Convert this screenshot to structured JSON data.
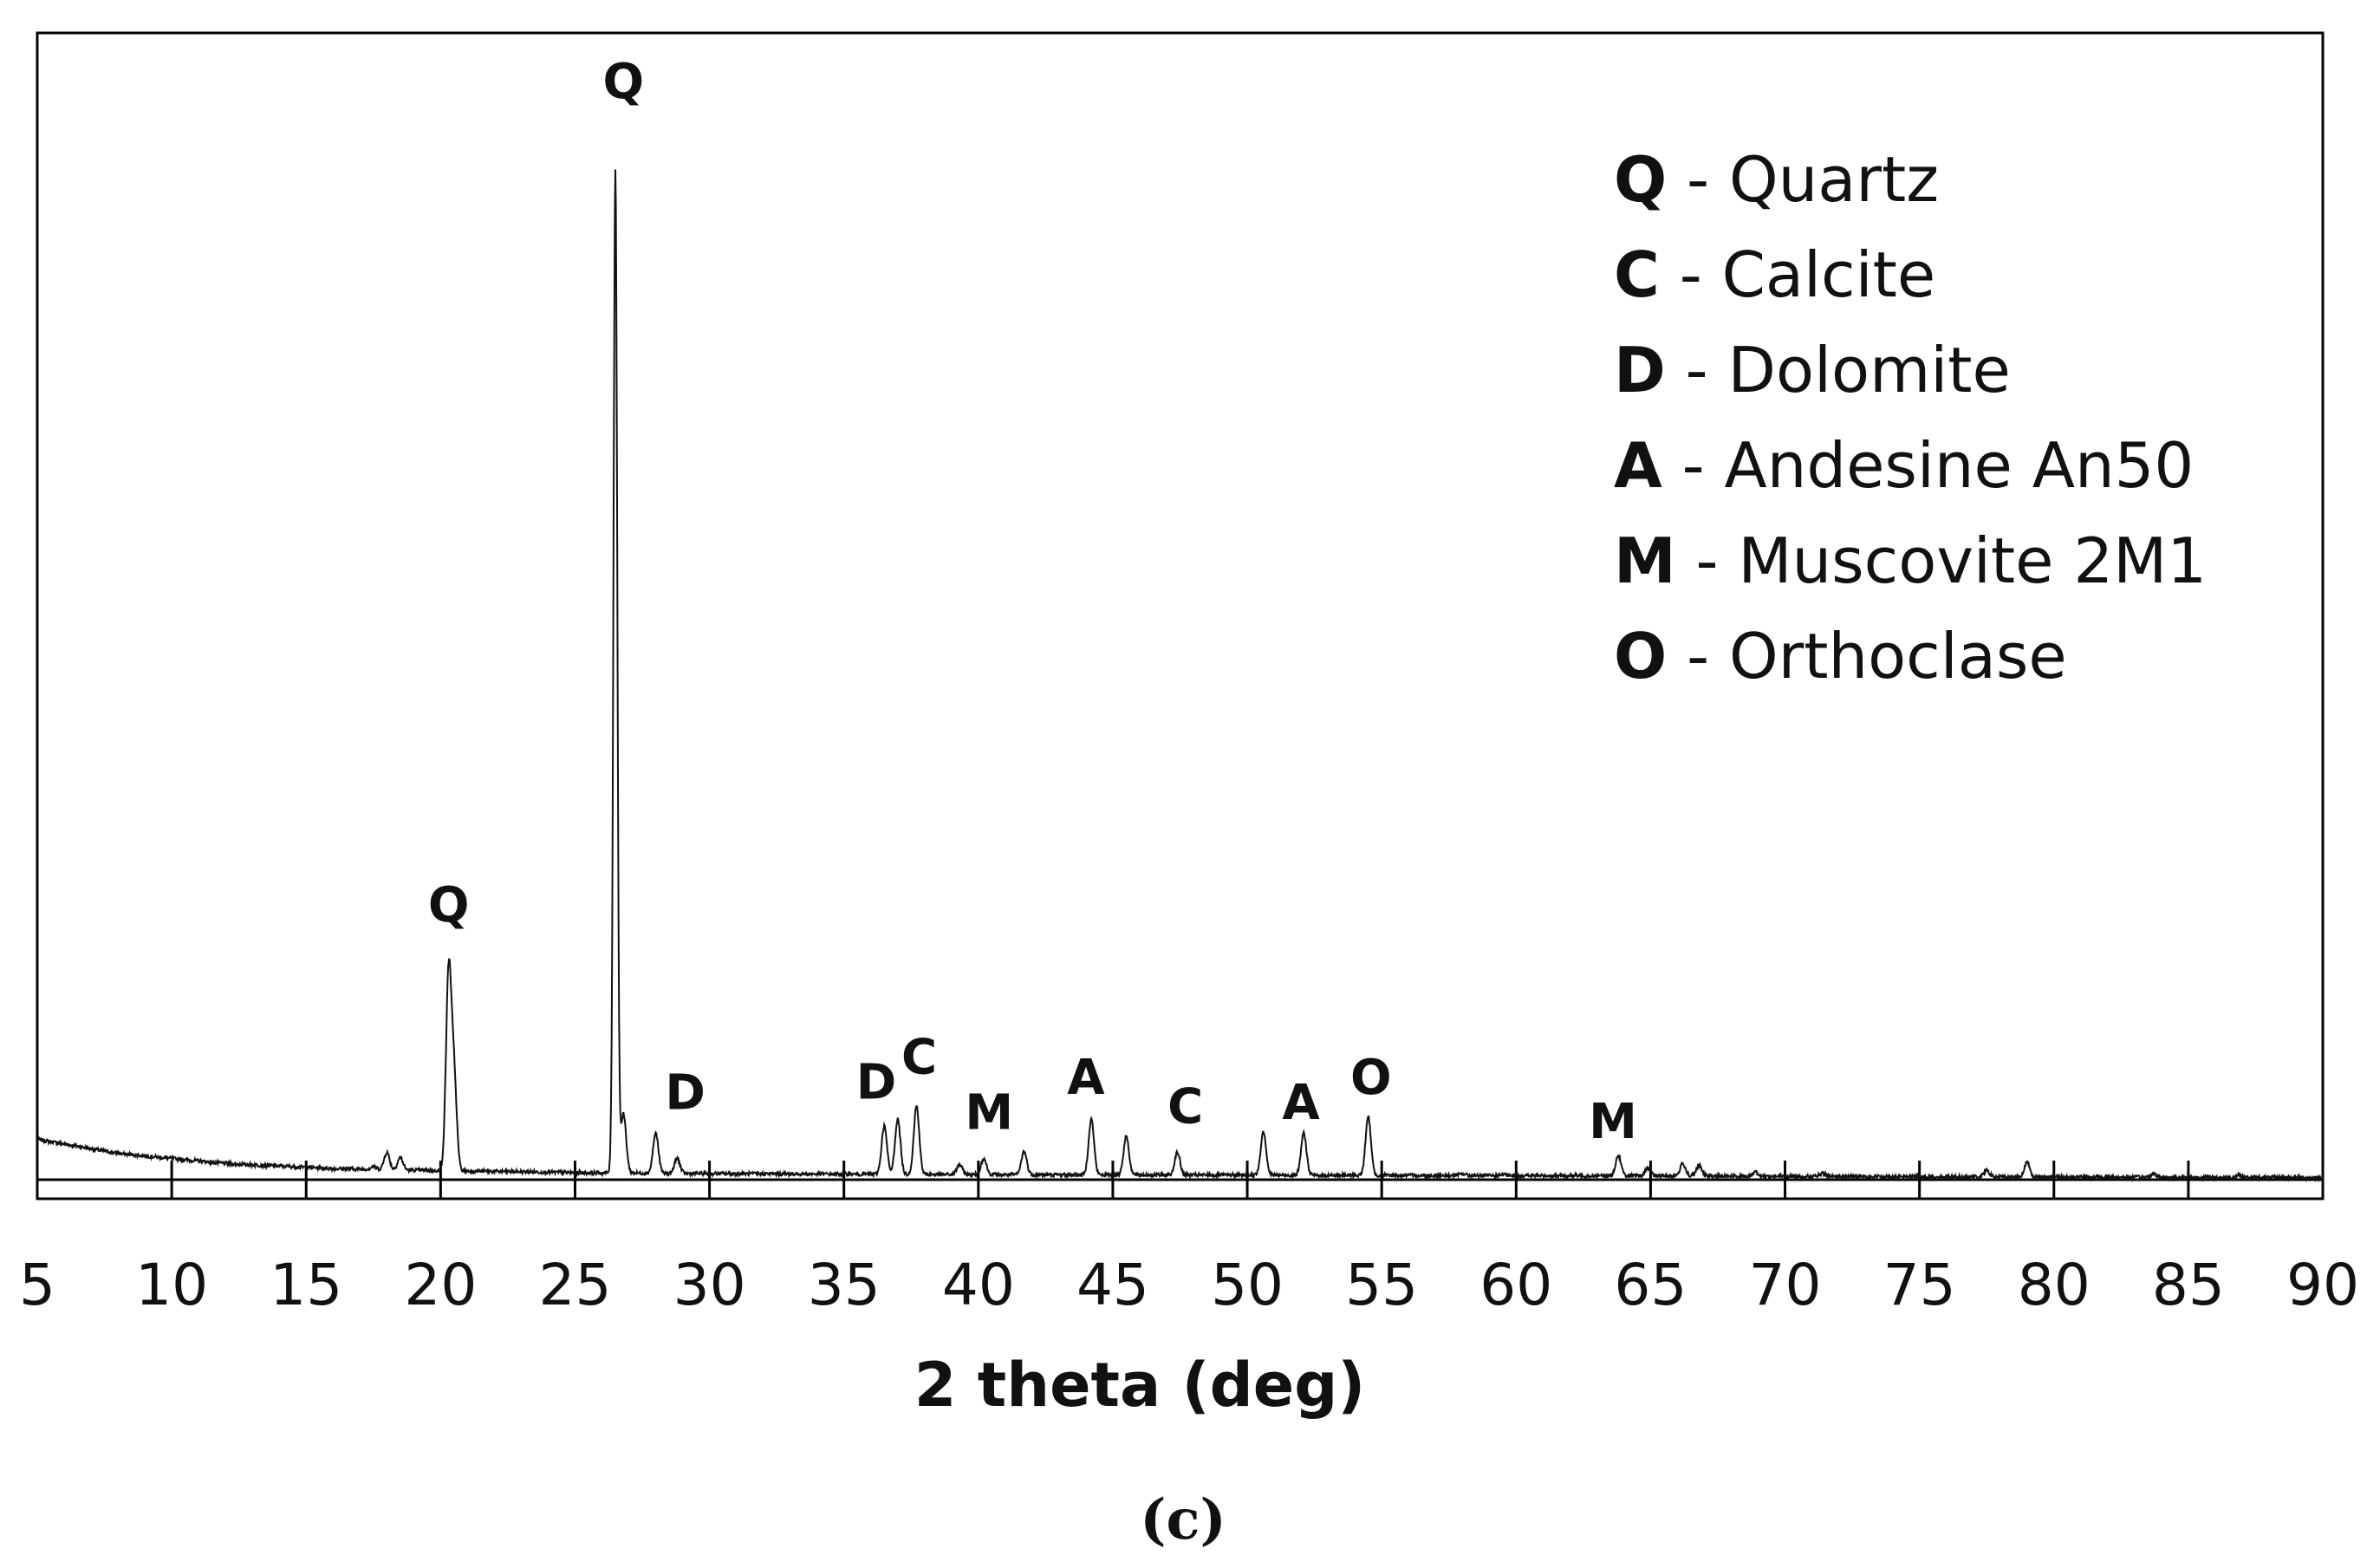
{
  "chart_data": {
    "type": "line",
    "title": "",
    "xlabel": "2 theta (deg)",
    "ylabel": "",
    "xlim": [
      5,
      90
    ],
    "ylim": [
      0,
      100
    ],
    "grid": false,
    "legend_position": "top-right",
    "x_ticks": [
      "5",
      "10",
      "15",
      "20",
      "25",
      "30",
      "35",
      "40",
      "45",
      "50",
      "55",
      "60",
      "65",
      "70",
      "75",
      "80",
      "85",
      "90"
    ],
    "legend": [
      {
        "code": "Q",
        "text": " - Quartz"
      },
      {
        "code": "C",
        "text": " - Calcite"
      },
      {
        "code": "D",
        "text": " - Dolomite"
      },
      {
        "code": "A",
        "text": " - Andesine An50"
      },
      {
        "code": "M",
        "text": " - Muscovite 2M1"
      },
      {
        "code": "O",
        "text": " - Orthoclase"
      }
    ],
    "baseline": [
      [
        5,
        4.0
      ],
      [
        8,
        2.6
      ],
      [
        12,
        1.6
      ],
      [
        16,
        1.1
      ],
      [
        20,
        0.9
      ],
      [
        25,
        0.7
      ],
      [
        30,
        0.6
      ],
      [
        40,
        0.5
      ],
      [
        60,
        0.4
      ],
      [
        90,
        0.2
      ]
    ],
    "series": [
      {
        "peaks": [
          {
            "x": 17.5,
            "y": 1.3
          },
          {
            "x": 18.0,
            "y": 2.7
          },
          {
            "x": 18.5,
            "y": 2.2
          },
          {
            "x": 20.3,
            "y": 20.5
          },
          {
            "x": 20.5,
            "y": 10.0
          },
          {
            "x": 26.5,
            "y": 100
          },
          {
            "x": 26.8,
            "y": 6.5
          },
          {
            "x": 28.0,
            "y": 4.6
          },
          {
            "x": 28.8,
            "y": 2.1
          },
          {
            "x": 36.5,
            "y": 5.3
          },
          {
            "x": 37.0,
            "y": 6.0
          },
          {
            "x": 37.7,
            "y": 7.3
          },
          {
            "x": 39.3,
            "y": 1.5
          },
          {
            "x": 40.2,
            "y": 2.1
          },
          {
            "x": 41.7,
            "y": 2.8
          },
          {
            "x": 44.2,
            "y": 6.0
          },
          {
            "x": 45.5,
            "y": 4.3
          },
          {
            "x": 47.4,
            "y": 2.7
          },
          {
            "x": 50.6,
            "y": 4.8
          },
          {
            "x": 52.1,
            "y": 4.6
          },
          {
            "x": 54.5,
            "y": 6.2
          },
          {
            "x": 58.0,
            "y": 0.6
          },
          {
            "x": 59.5,
            "y": 0.5
          },
          {
            "x": 63.8,
            "y": 2.4
          },
          {
            "x": 64.9,
            "y": 1.2
          },
          {
            "x": 66.2,
            "y": 1.6
          },
          {
            "x": 66.8,
            "y": 1.4
          },
          {
            "x": 68.9,
            "y": 0.8
          },
          {
            "x": 71.4,
            "y": 0.6
          },
          {
            "x": 77.5,
            "y": 0.9
          },
          {
            "x": 79.0,
            "y": 1.7
          },
          {
            "x": 83.7,
            "y": 0.6
          },
          {
            "x": 86.9,
            "y": 0.5
          }
        ]
      }
    ],
    "annotations": [
      {
        "text": "Q",
        "x": 20.3,
        "y": 25.5
      },
      {
        "text": "Q",
        "x": 26.8,
        "y": 107
      },
      {
        "text": "D",
        "x": 29.1,
        "y": 7.0
      },
      {
        "text": "D",
        "x": 36.2,
        "y": 8.0
      },
      {
        "text": "C",
        "x": 37.8,
        "y": 10.5
      },
      {
        "text": "M",
        "x": 40.4,
        "y": 5.0
      },
      {
        "text": "A",
        "x": 44.0,
        "y": 8.5
      },
      {
        "text": "C",
        "x": 47.7,
        "y": 5.6
      },
      {
        "text": "A",
        "x": 52.0,
        "y": 6.0
      },
      {
        "text": "O",
        "x": 54.6,
        "y": 8.5
      },
      {
        "text": "M",
        "x": 63.6,
        "y": 4.1
      }
    ]
  },
  "caption": "(c)",
  "colors": {
    "line": "#111111",
    "frame": "#000000"
  }
}
